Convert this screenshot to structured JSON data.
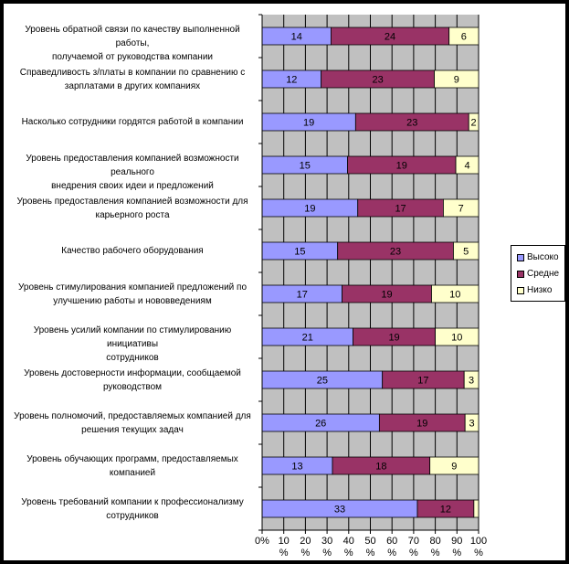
{
  "chart_data": {
    "type": "bar",
    "orientation": "horizontal",
    "stacked": "percent",
    "categories": [
      [
        "Уровень обратной связи по качеству выполненной работы,",
        "получаемой от руководства компании"
      ],
      [
        "Справедливость з/платы в компании по сравнению с",
        "зарплатами в других компаниях"
      ],
      [
        "Насколько сотрудники гордятся работой в компании"
      ],
      [
        "Уровень предоставления компанией возможности реального",
        "внедрения своих  идеи и предложений"
      ],
      [
        "Уровень предоставления компанией  возможности для",
        "карьерного роста"
      ],
      [
        "Качество  рабочего оборудования"
      ],
      [
        "Уровень стимулирования компанией предложений по",
        "улучшению работы и нововведениям"
      ],
      [
        "Уровень усилий компании по стимулированию инициативы",
        "сотрудников"
      ],
      [
        "Уровень  достоверности информации, сообщаемой",
        "руководством"
      ],
      [
        "Уровень  полномочий, предоставляемых компанией для",
        "решения текущих задач"
      ],
      [
        "Уровень обучающих программ, предоставляемых",
        "компанией"
      ],
      [
        "Уровень требований компании  к  профессионализму",
        "сотрудников"
      ]
    ],
    "series": [
      {
        "name": "Высоко",
        "color": "#9999ff",
        "values": [
          14,
          12,
          19,
          15,
          19,
          15,
          17,
          21,
          25,
          26,
          13,
          33
        ]
      },
      {
        "name": "Средне",
        "color": "#993366",
        "values": [
          24,
          23,
          23,
          19,
          17,
          23,
          19,
          19,
          17,
          19,
          18,
          12
        ]
      },
      {
        "name": "Низко",
        "color": "#ffffcc",
        "values": [
          6,
          9,
          2,
          4,
          7,
          5,
          10,
          10,
          3,
          3,
          9,
          1
        ]
      }
    ],
    "data_labels": [
      [
        "14",
        "12",
        "19",
        "15",
        "19",
        "15",
        "17",
        "21",
        "25",
        "26",
        "13",
        "33"
      ],
      [
        "24",
        "23",
        "23",
        "19",
        "17",
        "23",
        "19",
        "19",
        "17",
        "19",
        "18",
        "12"
      ],
      [
        "6",
        "9",
        "2",
        "4",
        "7",
        "5",
        "10",
        "10",
        "3",
        "3",
        "9",
        ""
      ]
    ],
    "x_ticks": [
      {
        "value": 0,
        "num": "0%",
        "pct": ""
      },
      {
        "value": 10,
        "num": "10",
        "pct": "%"
      },
      {
        "value": 20,
        "num": "20",
        "pct": "%"
      },
      {
        "value": 30,
        "num": "30",
        "pct": "%"
      },
      {
        "value": 40,
        "num": "40",
        "pct": "%"
      },
      {
        "value": 50,
        "num": "50",
        "pct": "%"
      },
      {
        "value": 60,
        "num": "60",
        "pct": "%"
      },
      {
        "value": 70,
        "num": "70",
        "pct": "%"
      },
      {
        "value": 80,
        "num": "80",
        "pct": "%"
      },
      {
        "value": 90,
        "num": "90",
        "pct": "%"
      },
      {
        "value": 100,
        "num": "100",
        "pct": "%"
      }
    ],
    "xlim": [
      0,
      100
    ],
    "grid": true,
    "plot_background": "#c0c0c0",
    "legend": "right"
  }
}
